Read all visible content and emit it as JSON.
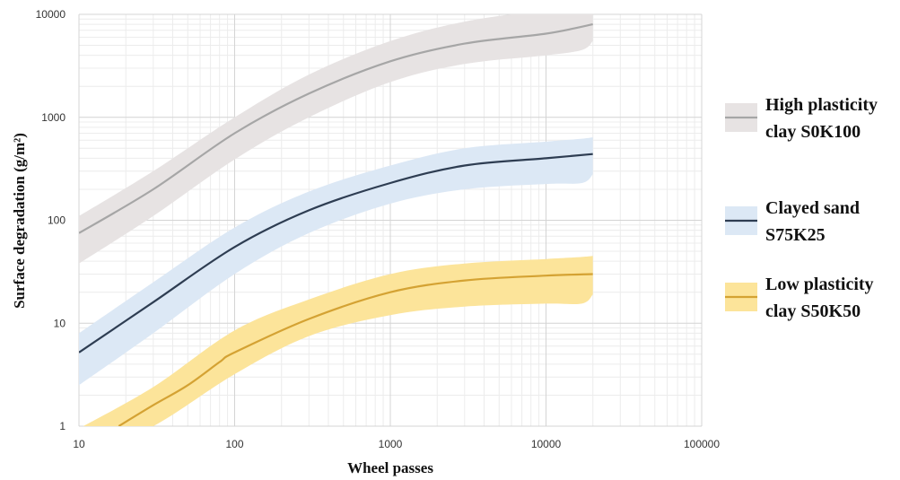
{
  "chart_data": {
    "type": "line",
    "xlabel": "Wheel passes",
    "ylabel": "Surface degradation (g/m²)",
    "xscale": "log",
    "yscale": "log",
    "xlim": [
      10,
      100000
    ],
    "ylim": [
      1,
      10000
    ],
    "x_ticks": [
      "10",
      "100",
      "1000",
      "10000",
      "100000"
    ],
    "y_ticks": [
      "1",
      "10",
      "100",
      "1000",
      "10000"
    ],
    "grid": true,
    "legend_position": "right",
    "series": [
      {
        "name_lines": [
          "High plasticity",
          "clay S0K100"
        ],
        "color": "#a6a6a6",
        "band_color": "#e7e3e3",
        "points": [
          [
            10,
            75
          ],
          [
            30,
            200
          ],
          [
            100,
            700
          ],
          [
            300,
            1700
          ],
          [
            1000,
            3500
          ],
          [
            3000,
            5200
          ],
          [
            10000,
            6500
          ],
          [
            20000,
            8000
          ]
        ],
        "band_lower": [
          [
            10,
            38
          ],
          [
            30,
            110
          ],
          [
            100,
            390
          ],
          [
            300,
            1000
          ],
          [
            1000,
            2200
          ],
          [
            3000,
            3300
          ],
          [
            10000,
            4000
          ],
          [
            17000,
            4500
          ],
          [
            20000,
            5500
          ]
        ],
        "band_upper": [
          [
            10,
            110
          ],
          [
            30,
            300
          ],
          [
            100,
            1000
          ],
          [
            300,
            2600
          ],
          [
            1000,
            5500
          ],
          [
            3000,
            8500
          ],
          [
            10000,
            11000
          ],
          [
            20000,
            12000
          ]
        ]
      },
      {
        "name_lines": [
          "Clayed sand",
          "S75K25"
        ],
        "color": "#2e3d52",
        "band_color": "#dce8f5",
        "points": [
          [
            10,
            5.2
          ],
          [
            30,
            16
          ],
          [
            100,
            55
          ],
          [
            300,
            125
          ],
          [
            1000,
            230
          ],
          [
            3000,
            340
          ],
          [
            10000,
            400
          ],
          [
            20000,
            440
          ]
        ],
        "band_lower": [
          [
            10,
            2.5
          ],
          [
            30,
            8
          ],
          [
            100,
            30
          ],
          [
            300,
            75
          ],
          [
            1000,
            145
          ],
          [
            3000,
            200
          ],
          [
            10000,
            225
          ],
          [
            17000,
            230
          ],
          [
            20000,
            280
          ]
        ],
        "band_upper": [
          [
            10,
            8
          ],
          [
            30,
            25
          ],
          [
            100,
            85
          ],
          [
            300,
            190
          ],
          [
            1000,
            340
          ],
          [
            3000,
            500
          ],
          [
            10000,
            580
          ],
          [
            17000,
            620
          ],
          [
            20000,
            640
          ]
        ]
      },
      {
        "name_lines": [
          "Low plasticity",
          "clay S50K50"
        ],
        "color": "#d4a233",
        "band_color": "#fce49a",
        "points": [
          [
            18,
            1
          ],
          [
            30,
            1.6
          ],
          [
            50,
            2.5
          ],
          [
            80,
            4.2
          ],
          [
            100,
            5.2
          ],
          [
            300,
            11
          ],
          [
            1000,
            20
          ],
          [
            3000,
            26
          ],
          [
            10000,
            29
          ],
          [
            20000,
            30
          ]
        ],
        "band_lower": [
          [
            12,
            0.6
          ],
          [
            30,
            1.0
          ],
          [
            100,
            3.2
          ],
          [
            300,
            7.5
          ],
          [
            1000,
            12
          ],
          [
            3000,
            14.5
          ],
          [
            10000,
            15.5
          ],
          [
            17000,
            15.5
          ],
          [
            20000,
            19
          ]
        ],
        "band_upper": [
          [
            10,
            0.95
          ],
          [
            30,
            2.4
          ],
          [
            100,
            8.5
          ],
          [
            300,
            17
          ],
          [
            1000,
            30
          ],
          [
            3000,
            38
          ],
          [
            10000,
            42
          ],
          [
            17000,
            44
          ],
          [
            20000,
            45
          ]
        ]
      }
    ]
  }
}
